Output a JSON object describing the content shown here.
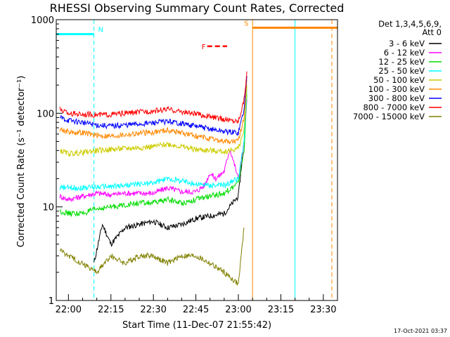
{
  "chart_data": {
    "type": "line",
    "title": "RHESSI Observing Summary Count Rates, Corrected",
    "xlabel": "Start Time (11-Dec-07 21:55:42)",
    "ylabel": "Corrected Count Rate (s⁻¹ detector⁻¹)",
    "y_scale": "log",
    "ylim": [
      1,
      1000
    ],
    "xlim": [
      "21:55:42",
      "23:35:00"
    ],
    "x_ticks": [
      "22:00",
      "22:15",
      "22:30",
      "22:45",
      "23:00",
      "23:15",
      "23:30"
    ],
    "y_ticks": [
      "1",
      "10",
      "100",
      "1000"
    ],
    "legend": {
      "placement": "right",
      "header": [
        "Det 1,3,4,5,6,9,",
        "Att 0"
      ],
      "entries": [
        {
          "label": "3 - 6 keV",
          "color": "#000000"
        },
        {
          "label": "6 - 12 keV",
          "color": "#ff00ff"
        },
        {
          "label": "12 - 25 keV",
          "color": "#00dd00"
        },
        {
          "label": "25 - 50 keV",
          "color": "#00ffff"
        },
        {
          "label": "50 - 100 keV",
          "color": "#cccc00"
        },
        {
          "label": "100 - 300 keV",
          "color": "#ff8800"
        },
        {
          "label": "300 - 800 keV",
          "color": "#0000ff"
        },
        {
          "label": "800 - 7000 keV",
          "color": "#ff0000"
        },
        {
          "label": "7000 - 15000 keV",
          "color": "#808000"
        }
      ]
    },
    "series": [
      {
        "name": "3 - 6 keV",
        "color": "#000000",
        "x": [
          "22:09",
          "22:12",
          "22:15",
          "22:20",
          "22:25",
          "22:30",
          "22:35",
          "22:40",
          "22:45",
          "22:50",
          "22:55",
          "23:00",
          "23:02"
        ],
        "values": [
          2.5,
          6.5,
          4,
          6,
          6.5,
          7,
          6,
          6.5,
          7.5,
          8,
          8.5,
          13,
          50
        ]
      },
      {
        "name": "6 - 12 keV",
        "color": "#ff00ff",
        "x": [
          "21:57",
          "22:00",
          "22:05",
          "22:10",
          "22:15",
          "22:20",
          "22:25",
          "22:30",
          "22:35",
          "22:40",
          "22:45",
          "22:48",
          "22:50",
          "22:52",
          "22:55",
          "22:57",
          "23:00",
          "23:02",
          "23:03"
        ],
        "values": [
          13,
          12,
          13,
          14,
          13.5,
          14,
          14,
          14,
          16,
          14.5,
          14.5,
          17,
          23,
          20,
          24,
          42,
          20,
          45,
          140
        ]
      },
      {
        "name": "12 - 25 keV",
        "color": "#00dd00",
        "x": [
          "21:57",
          "22:00",
          "22:05",
          "22:10",
          "22:15",
          "22:20",
          "22:25",
          "22:30",
          "22:35",
          "22:40",
          "22:45",
          "22:50",
          "22:55",
          "23:00",
          "23:02",
          "23:03"
        ],
        "values": [
          9,
          8.5,
          8.5,
          9.5,
          10,
          10.5,
          11,
          11,
          12,
          11,
          12,
          13,
          14,
          18,
          40,
          160
        ]
      },
      {
        "name": "25 - 50 keV",
        "color": "#00ffff",
        "x": [
          "21:57",
          "22:00",
          "22:05",
          "22:10",
          "22:15",
          "22:20",
          "22:25",
          "22:30",
          "22:35",
          "22:40",
          "22:45",
          "22:50",
          "22:55",
          "23:00",
          "23:02",
          "23:03"
        ],
        "values": [
          16,
          16,
          16,
          16.5,
          16.5,
          17,
          17.5,
          18,
          20,
          19,
          17.5,
          17,
          17,
          20,
          50,
          180
        ]
      },
      {
        "name": "50 - 100 keV",
        "color": "#cccc00",
        "x": [
          "21:57",
          "22:00",
          "22:05",
          "22:10",
          "22:15",
          "22:20",
          "22:25",
          "22:30",
          "22:35",
          "22:40",
          "22:45",
          "22:50",
          "22:55",
          "23:00",
          "23:02",
          "23:03"
        ],
        "values": [
          40,
          37,
          38,
          40,
          41,
          42,
          43,
          44,
          47,
          44,
          41,
          40,
          39,
          42,
          65,
          200
        ]
      },
      {
        "name": "100 - 300 keV",
        "color": "#ff8800",
        "x": [
          "21:57",
          "22:00",
          "22:05",
          "22:10",
          "22:15",
          "22:20",
          "22:25",
          "22:30",
          "22:35",
          "22:40",
          "22:45",
          "22:50",
          "22:55",
          "23:00",
          "23:02",
          "23:03"
        ],
        "values": [
          68,
          63,
          62,
          58,
          57,
          59,
          61,
          63,
          66,
          62,
          57,
          53,
          50,
          50,
          90,
          230
        ]
      },
      {
        "name": "300 - 800 keV",
        "color": "#0000ff",
        "x": [
          "21:57",
          "22:00",
          "22:05",
          "22:10",
          "22:15",
          "22:20",
          "22:25",
          "22:30",
          "22:35",
          "22:40",
          "22:45",
          "22:50",
          "22:55",
          "23:00",
          "23:02",
          "23:03"
        ],
        "values": [
          90,
          84,
          80,
          75,
          73,
          75,
          77,
          79,
          82,
          78,
          73,
          68,
          64,
          62,
          110,
          250
        ]
      },
      {
        "name": "800 - 7000 keV",
        "color": "#ff0000",
        "x": [
          "21:57",
          "22:00",
          "22:05",
          "22:10",
          "22:15",
          "22:20",
          "22:25",
          "22:30",
          "22:35",
          "22:40",
          "22:45",
          "22:50",
          "22:55",
          "23:00",
          "23:02",
          "23:03"
        ],
        "values": [
          110,
          100,
          98,
          96,
          97,
          100,
          103,
          106,
          110,
          104,
          98,
          92,
          86,
          82,
          140,
          280
        ]
      },
      {
        "name": "7000 - 15000 keV",
        "color": "#808000",
        "x": [
          "21:57",
          "22:00",
          "22:05",
          "22:10",
          "22:15",
          "22:20",
          "22:25",
          "22:30",
          "22:35",
          "22:40",
          "22:45",
          "22:50",
          "22:55",
          "23:00",
          "23:02"
        ],
        "values": [
          3.5,
          3,
          2.5,
          2,
          3,
          2.5,
          3,
          3,
          2.5,
          3,
          3,
          2.5,
          2,
          1.5,
          6
        ]
      }
    ],
    "annotations": [
      {
        "label": "N",
        "color": "#00ffff",
        "x_start": "21:55:42",
        "x_end": "22:09",
        "y": 700
      },
      {
        "label": "F",
        "color": "#ff0000",
        "x_start": "22:49",
        "x_end": "22:56",
        "y": 520
      },
      {
        "label": "S",
        "color": "#ff8800",
        "x_start": "23:05",
        "x_end": "23:35:00",
        "y": 820
      }
    ],
    "vertical_lines": [
      {
        "x": "22:09",
        "color": "#00ffff",
        "style": "dashed"
      },
      {
        "x": "23:05",
        "color": "#ff8800",
        "style": "solid"
      },
      {
        "x": "23:20",
        "color": "#00ffff",
        "style": "solid"
      },
      {
        "x": "23:33",
        "color": "#ff8800",
        "style": "dashed"
      }
    ]
  },
  "footer": {
    "timestamp": "17-Oct-2021 03:37"
  }
}
